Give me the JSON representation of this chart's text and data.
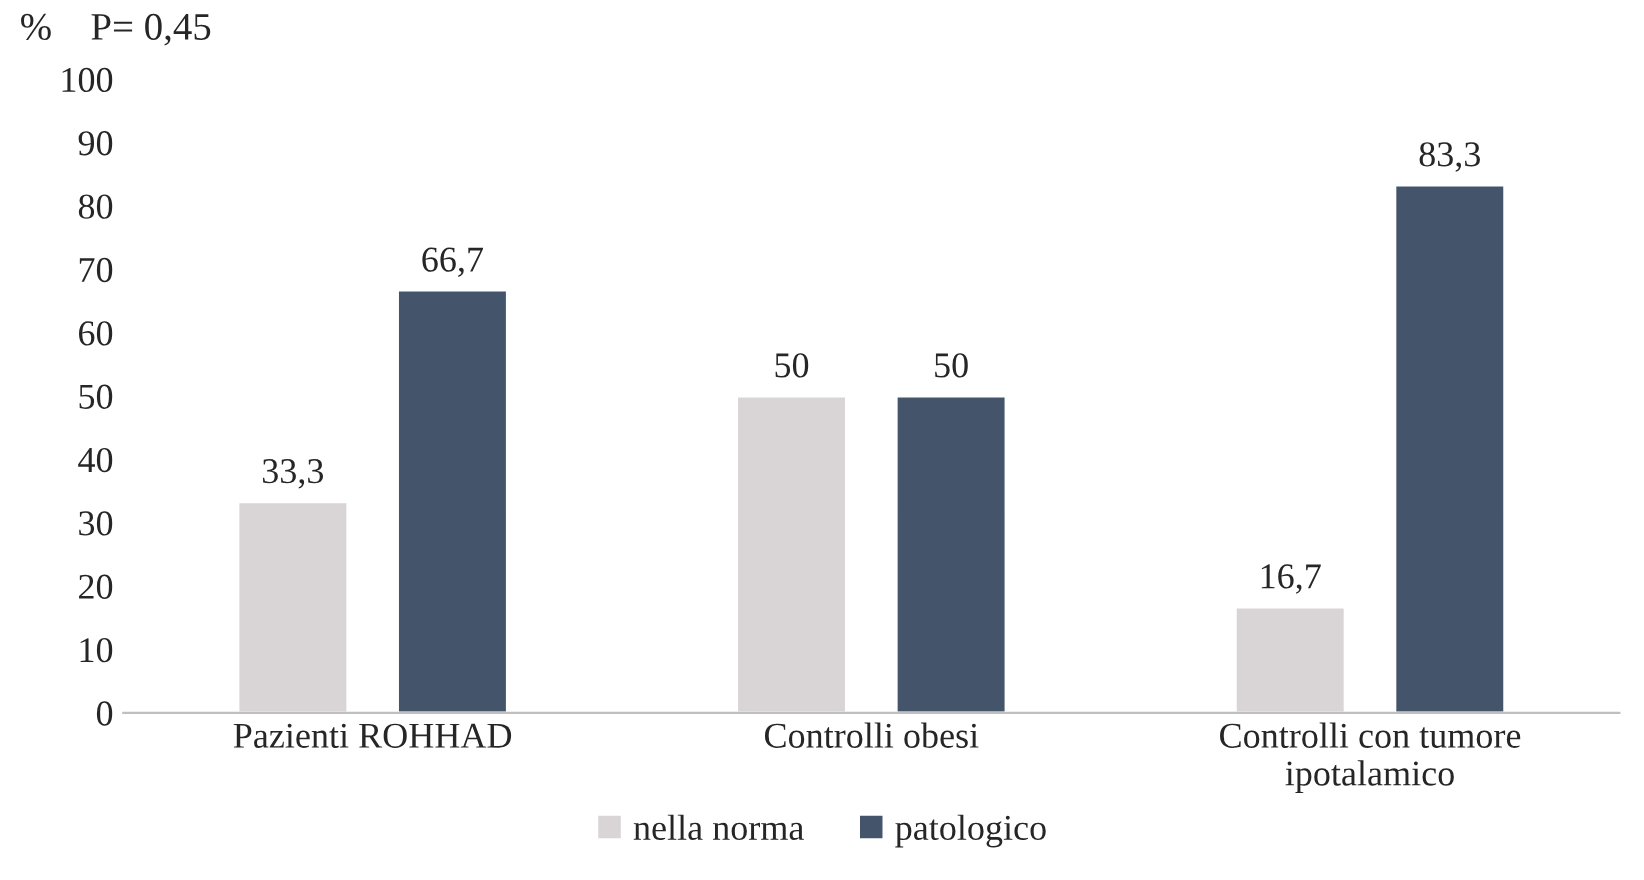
{
  "chart_data": {
    "type": "bar",
    "ylabel": "%",
    "annotations": [
      "P= 0,45"
    ],
    "categories": [
      "Pazienti ROHHAD",
      "Controlli obesi",
      "Controlli con tumore\nipotalamico"
    ],
    "series": [
      {
        "name": "nella norma",
        "color": "#d9d5d6",
        "values": [
          33.3,
          50,
          16.7
        ],
        "value_labels": [
          "33,3",
          "50",
          "16,7"
        ]
      },
      {
        "name": "patologico",
        "color": "#44546a",
        "values": [
          66.7,
          50,
          83.3
        ],
        "value_labels": [
          "66,7",
          "50",
          "83,3"
        ]
      }
    ],
    "ylim": [
      0,
      100
    ],
    "yticks": [
      0,
      10,
      20,
      30,
      40,
      50,
      60,
      70,
      80,
      90,
      100
    ],
    "grid": false,
    "legend": "bottom"
  }
}
